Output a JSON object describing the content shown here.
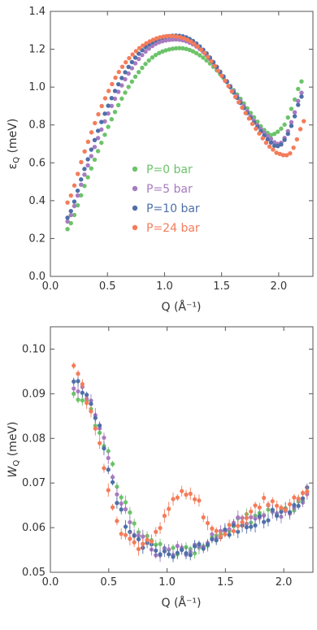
{
  "chart_data": [
    {
      "type": "scatter",
      "xlabel": "Q (Å⁻¹)",
      "ylabel": "ε",
      "ylabel_sub": "Q",
      "ylabel_unit": " (meV)",
      "xlim": [
        0.0,
        2.3
      ],
      "ylim": [
        0.0,
        1.4
      ],
      "xticks": [
        "0.0",
        "0.5",
        "1.0",
        "1.5",
        "2.0"
      ],
      "xtick_values": [
        0.0,
        0.5,
        1.0,
        1.5,
        2.0
      ],
      "yticks": [
        "0.0",
        "0.2",
        "0.4",
        "0.6",
        "0.8",
        "1.0",
        "1.2",
        "1.4"
      ],
      "ytick_values": [
        0.0,
        0.2,
        0.4,
        0.6,
        0.8,
        1.0,
        1.2,
        1.4
      ],
      "grid": false,
      "legend_position": "center-left",
      "series": [
        {
          "name": "P=0 bar",
          "color": "#6cc36a",
          "x": [
            0.15,
            0.3,
            0.45,
            0.6,
            0.75,
            0.9,
            1.05,
            1.2,
            1.35,
            1.5,
            1.65,
            1.8,
            1.9,
            1.95,
            2.05,
            2.12,
            2.2
          ],
          "y": [
            0.25,
            0.48,
            0.71,
            0.91,
            1.06,
            1.16,
            1.2,
            1.2,
            1.15,
            1.06,
            0.95,
            0.83,
            0.76,
            0.75,
            0.8,
            0.9,
            1.03
          ]
        },
        {
          "name": "P=5 bar",
          "color": "#a77bc0",
          "x": [
            0.15,
            0.3,
            0.45,
            0.6,
            0.75,
            0.9,
            1.05,
            1.2,
            1.35,
            1.5,
            1.65,
            1.8,
            1.95,
            2.0,
            2.05,
            2.12,
            2.2
          ],
          "y": [
            0.29,
            0.54,
            0.78,
            0.98,
            1.13,
            1.22,
            1.25,
            1.24,
            1.18,
            1.07,
            0.94,
            0.81,
            0.72,
            0.7,
            0.73,
            0.83,
            0.97
          ]
        },
        {
          "name": "P=10 bar",
          "color": "#4f6fa8",
          "x": [
            0.15,
            0.3,
            0.45,
            0.6,
            0.75,
            0.9,
            1.05,
            1.2,
            1.35,
            1.5,
            1.65,
            1.8,
            1.95,
            2.0,
            2.05,
            2.12,
            2.2
          ],
          "y": [
            0.31,
            0.57,
            0.82,
            1.02,
            1.16,
            1.24,
            1.27,
            1.26,
            1.19,
            1.07,
            0.93,
            0.8,
            0.7,
            0.69,
            0.72,
            0.81,
            0.95
          ]
        },
        {
          "name": "P=24 bar",
          "color": "#f47c5a",
          "x": [
            0.15,
            0.3,
            0.45,
            0.6,
            0.75,
            0.9,
            1.05,
            1.2,
            1.35,
            1.5,
            1.65,
            1.8,
            1.95,
            2.0,
            2.05,
            2.1,
            2.15,
            2.22
          ],
          "y": [
            0.39,
            0.66,
            0.9,
            1.08,
            1.19,
            1.25,
            1.27,
            1.25,
            1.18,
            1.06,
            0.92,
            0.78,
            0.67,
            0.65,
            0.64,
            0.65,
            0.71,
            0.82
          ]
        }
      ]
    },
    {
      "type": "scatter",
      "xlabel": "Q (Å⁻¹)",
      "ylabel": "W",
      "ylabel_sub": "Q",
      "ylabel_unit": " (meV)",
      "xlim": [
        0.0,
        2.25
      ],
      "ylim": [
        0.05,
        0.105
      ],
      "xticks": [
        "0.0",
        "0.5",
        "1.0",
        "1.5",
        "2.0"
      ],
      "xtick_values": [
        0.0,
        0.5,
        1.0,
        1.5,
        2.0
      ],
      "yticks": [
        "0.05",
        "0.06",
        "0.07",
        "0.08",
        "0.09",
        "0.10"
      ],
      "ytick_values": [
        0.05,
        0.06,
        0.07,
        0.08,
        0.09,
        0.1
      ],
      "grid": false,
      "error_bars": true,
      "series": [
        {
          "name": "P=0 bar",
          "color": "#6cc36a",
          "x": [
            0.2,
            0.3,
            0.4,
            0.5,
            0.6,
            0.7,
            0.8,
            0.9,
            1.0,
            1.1,
            1.2,
            1.3,
            1.4,
            1.5,
            1.6,
            1.7,
            1.8,
            1.9,
            2.0,
            2.1,
            2.2
          ],
          "y": [
            0.089,
            0.088,
            0.083,
            0.076,
            0.068,
            0.062,
            0.058,
            0.056,
            0.055,
            0.055,
            0.055,
            0.056,
            0.057,
            0.059,
            0.061,
            0.062,
            0.063,
            0.063,
            0.064,
            0.065,
            0.068
          ]
        },
        {
          "name": "P=5 bar",
          "color": "#a77bc0",
          "x": [
            0.2,
            0.3,
            0.4,
            0.5,
            0.6,
            0.7,
            0.8,
            0.9,
            1.0,
            1.1,
            1.2,
            1.3,
            1.4,
            1.5,
            1.6,
            1.7,
            1.8,
            1.9,
            2.0,
            2.1,
            2.2
          ],
          "y": [
            0.092,
            0.09,
            0.085,
            0.075,
            0.066,
            0.06,
            0.057,
            0.055,
            0.055,
            0.055,
            0.055,
            0.056,
            0.058,
            0.06,
            0.061,
            0.062,
            0.063,
            0.064,
            0.063,
            0.065,
            0.067
          ]
        },
        {
          "name": "P=10 bar",
          "color": "#4f6fa8",
          "x": [
            0.2,
            0.3,
            0.4,
            0.5,
            0.6,
            0.7,
            0.8,
            0.9,
            1.0,
            1.1,
            1.2,
            1.3,
            1.4,
            1.5,
            1.6,
            1.7,
            1.8,
            1.9,
            2.0,
            2.1,
            2.2
          ],
          "y": [
            0.093,
            0.09,
            0.084,
            0.073,
            0.064,
            0.058,
            0.056,
            0.055,
            0.054,
            0.054,
            0.055,
            0.056,
            0.057,
            0.059,
            0.06,
            0.061,
            0.062,
            0.063,
            0.063,
            0.065,
            0.068
          ]
        },
        {
          "name": "P=24 bar",
          "color": "#f47c5a",
          "x": [
            0.2,
            0.25,
            0.3,
            0.35,
            0.4,
            0.45,
            0.5,
            0.55,
            0.6,
            0.7,
            0.8,
            0.9,
            1.0,
            1.05,
            1.1,
            1.15,
            1.2,
            1.25,
            1.3,
            1.35,
            1.4,
            1.5,
            1.6,
            1.7,
            1.8,
            1.85,
            1.9,
            1.95,
            2.0,
            2.1,
            2.2
          ],
          "y": [
            0.096,
            0.094,
            0.09,
            0.086,
            0.081,
            0.075,
            0.069,
            0.064,
            0.06,
            0.057,
            0.056,
            0.058,
            0.063,
            0.066,
            0.067,
            0.067,
            0.067,
            0.066,
            0.064,
            0.061,
            0.059,
            0.059,
            0.061,
            0.063,
            0.065,
            0.066,
            0.066,
            0.065,
            0.065,
            0.066,
            0.069
          ]
        }
      ]
    }
  ]
}
